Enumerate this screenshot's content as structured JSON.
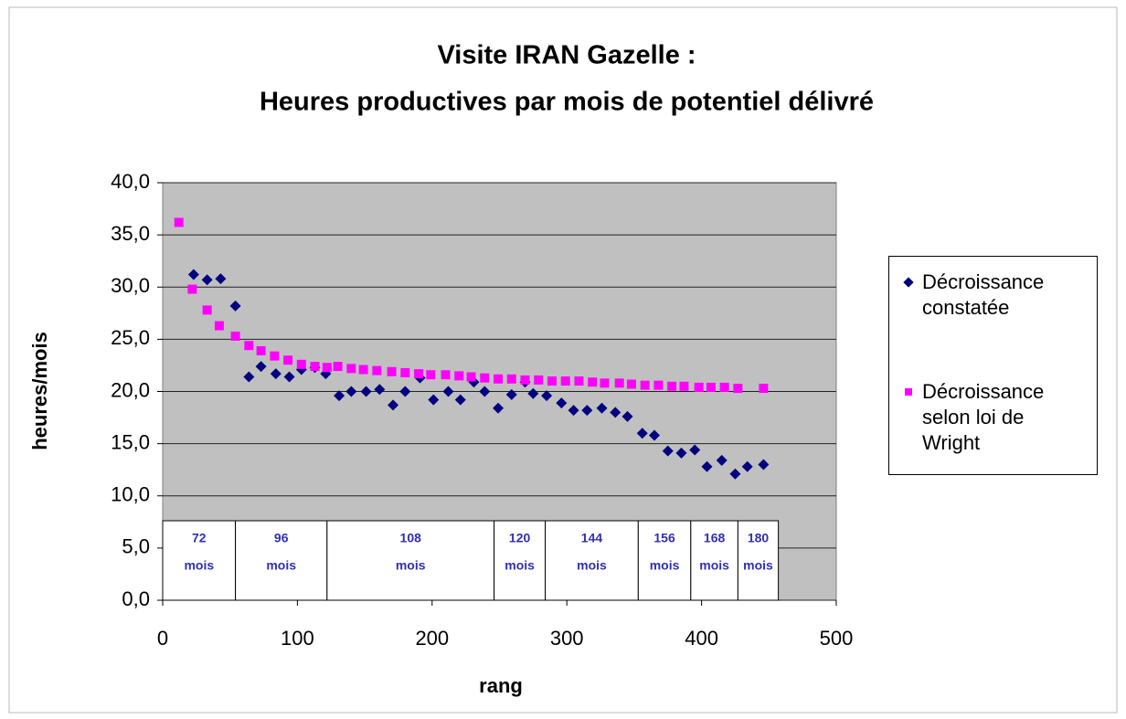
{
  "chart_data": {
    "type": "scatter",
    "title": "Visite IRAN Gazelle :",
    "subtitle": "Heures productives par mois de potentiel délivré",
    "x_label": "rang",
    "y_label": "heures/mois",
    "xlim": [
      0,
      500
    ],
    "xticks": [
      0,
      100,
      200,
      300,
      400,
      500
    ],
    "ylim": [
      0,
      40
    ],
    "yticks": [
      {
        "value": 0,
        "label": "0,0"
      },
      {
        "value": 5,
        "label": "5,0"
      },
      {
        "value": 10,
        "label": "10,0"
      },
      {
        "value": 15,
        "label": "15,0"
      },
      {
        "value": 20,
        "label": "20,0"
      },
      {
        "value": 25,
        "label": "25,0"
      },
      {
        "value": 30,
        "label": "30,0"
      },
      {
        "value": 35,
        "label": "35,0"
      },
      {
        "value": 40,
        "label": "40,0"
      }
    ],
    "grid": true,
    "legend": "right",
    "plot_background": "#c0c0c0",
    "segments": [
      {
        "label": "72",
        "unit": "mois",
        "from": 0,
        "to": 54
      },
      {
        "label": "96",
        "unit": "mois",
        "from": 54,
        "to": 122
      },
      {
        "label": "108",
        "unit": "mois",
        "from": 122,
        "to": 246
      },
      {
        "label": "120",
        "unit": "mois",
        "from": 246,
        "to": 284
      },
      {
        "label": "144",
        "unit": "mois",
        "from": 284,
        "to": 353
      },
      {
        "label": "156",
        "unit": "mois",
        "from": 353,
        "to": 392
      },
      {
        "label": "168",
        "unit": "mois",
        "from": 392,
        "to": 427
      },
      {
        "label": "180",
        "unit": "mois",
        "from": 427,
        "to": 457
      }
    ],
    "series": [
      {
        "name": "Décroissance constatée",
        "color": "#000080",
        "marker": "diamond",
        "x": [
          23,
          33,
          43,
          54,
          64,
          73,
          84,
          94,
          103,
          113,
          121,
          131,
          140,
          151,
          161,
          171,
          180,
          191,
          201,
          212,
          221,
          231,
          239,
          249,
          259,
          269,
          275,
          285,
          296,
          305,
          315,
          326,
          336,
          345,
          356,
          365,
          375,
          385,
          395,
          404,
          415,
          425,
          434,
          446
        ],
        "values": [
          31.2,
          30.7,
          30.8,
          28.2,
          21.4,
          22.4,
          21.7,
          21.4,
          22.1,
          22.3,
          21.7,
          19.6,
          20.0,
          20.0,
          20.2,
          18.7,
          20.0,
          21.3,
          19.2,
          20.0,
          19.2,
          20.9,
          20.0,
          18.4,
          19.7,
          20.9,
          19.8,
          19.6,
          18.9,
          18.2,
          18.2,
          18.4,
          18.0,
          17.6,
          16.0,
          15.8,
          14.3,
          14.1,
          14.4,
          12.8,
          13.4,
          12.1,
          12.8,
          13.0
        ]
      },
      {
        "name": "Décroissance selon loi de Wright",
        "color": "#ff00ff",
        "marker": "square",
        "x": [
          12,
          22,
          33,
          42,
          54,
          64,
          73,
          83,
          93,
          103,
          113,
          122,
          130,
          140,
          149,
          159,
          170,
          180,
          190,
          199,
          210,
          220,
          229,
          239,
          249,
          259,
          269,
          279,
          289,
          299,
          309,
          319,
          328,
          339,
          348,
          358,
          368,
          378,
          387,
          398,
          407,
          417,
          427,
          446
        ],
        "values": [
          36.2,
          29.8,
          27.8,
          26.3,
          25.3,
          24.4,
          23.9,
          23.4,
          23.0,
          22.6,
          22.4,
          22.3,
          22.4,
          22.2,
          22.1,
          22.0,
          21.9,
          21.8,
          21.7,
          21.6,
          21.6,
          21.5,
          21.4,
          21.3,
          21.2,
          21.2,
          21.1,
          21.1,
          21.0,
          21.0,
          21.0,
          20.9,
          20.8,
          20.8,
          20.7,
          20.6,
          20.6,
          20.5,
          20.5,
          20.4,
          20.4,
          20.4,
          20.3,
          20.3
        ]
      }
    ]
  }
}
